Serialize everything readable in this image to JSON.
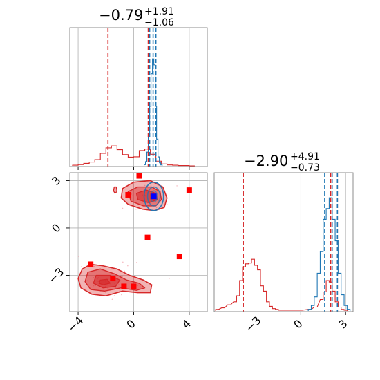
{
  "chart_data": {
    "type": "corner",
    "parameters": [
      {
        "title_median": "−0.79",
        "title_upper": "+1.91",
        "title_lower": "−1.06",
        "xlim": [
          -4.6,
          5.3
        ],
        "ticks": [
          {
            "value": -4,
            "label": "−4"
          },
          {
            "value": 0,
            "label": "0"
          },
          {
            "value": 4,
            "label": "4"
          }
        ],
        "quantiles": {
          "red": [
            -1.85,
            1.05,
            1.12
          ],
          "blue": [
            1.15,
            1.4,
            1.6
          ]
        }
      },
      {
        "title_median": "−2.90",
        "title_upper": "+4.91",
        "title_lower": "−0.73",
        "xlim": [
          -5.8,
          3.5
        ],
        "ticks": [
          {
            "value": -3,
            "label": "−3"
          },
          {
            "value": 0,
            "label": "0"
          },
          {
            "value": 3,
            "label": "3"
          }
        ],
        "quantiles": {
          "red": [
            -3.85,
            2.0,
            2.45
          ],
          "blue": [
            1.6,
            2.1,
            2.45
          ]
        }
      }
    ],
    "joint": {
      "xlim": [
        -4.6,
        5.3
      ],
      "ylim": [
        -5.3,
        3.5
      ],
      "xticks": [
        {
          "value": -4,
          "label": "−4"
        },
        {
          "value": 0,
          "label": "0"
        },
        {
          "value": 4,
          "label": "4"
        }
      ],
      "yticks": [
        {
          "value": 3,
          "label": "3"
        },
        {
          "value": 0,
          "label": "0"
        },
        {
          "value": -3,
          "label": "−3"
        }
      ],
      "red_squares": [
        [
          0.4,
          3.3
        ],
        [
          -0.4,
          2.1
        ],
        [
          4.0,
          2.4
        ],
        [
          1.0,
          -0.6
        ],
        [
          3.3,
          -1.8
        ],
        [
          -3.1,
          -2.3
        ],
        [
          -1.5,
          -3.2
        ],
        [
          -0.7,
          -3.7
        ],
        [
          0.0,
          -3.7
        ],
        [
          1.4,
          2.0
        ]
      ],
      "blue_square": [
        1.45,
        2.0
      ]
    },
    "hist1_red": {
      "x": [
        -4.2,
        -3.8,
        -3.4,
        -3.0,
        -2.6,
        -2.2,
        -1.8,
        -1.4,
        -1.0,
        -0.6,
        -0.2,
        0.2,
        0.6,
        1.0,
        1.4,
        1.8,
        2.2,
        2.6,
        3.0,
        3.4,
        3.8,
        4.2
      ],
      "counts": [
        0.2,
        0.4,
        0.8,
        1.2,
        2.0,
        4.0,
        5.8,
        6.4,
        5.2,
        3.6,
        2.8,
        2.9,
        4.9,
        5.4,
        3.7,
        1.5,
        0.6,
        0.3,
        0.2,
        0.1,
        0.1,
        0
      ]
    },
    "hist1_blue": {
      "x": [
        0.8,
        0.9,
        1.0,
        1.1,
        1.2,
        1.3,
        1.4,
        1.5,
        1.6,
        1.7,
        1.8,
        1.9,
        2.0
      ],
      "counts": [
        0.4,
        1.4,
        4.6,
        11.0,
        20.0,
        31.0,
        36.0,
        34.0,
        20.0,
        9.0,
        3.0,
        1.0,
        0.3
      ]
    },
    "hist2_red": {
      "x": [
        -5.6,
        -5.2,
        -4.8,
        -4.4,
        -4.2,
        -4.0,
        -3.8,
        -3.6,
        -3.4,
        -3.2,
        -3.0,
        -2.8,
        -2.6,
        -2.4,
        -2.2,
        -2.0,
        -1.8,
        -1.6,
        -1.4,
        0.0,
        0.6,
        1.0,
        1.4,
        1.6,
        1.8,
        2.0,
        2.2,
        2.4,
        2.6,
        2.8,
        3.0
      ],
      "counts": [
        0.2,
        0.4,
        0.8,
        1.2,
        2.0,
        4.0,
        5.8,
        6.2,
        6.3,
        6.8,
        6.0,
        5.4,
        3.3,
        2.6,
        1.2,
        0.6,
        0.3,
        0.2,
        0.1,
        0.1,
        0.2,
        0.5,
        1.5,
        2.5,
        4.0,
        3.8,
        2.6,
        1.2,
        0.5,
        0.2,
        0.1
      ]
    },
    "hist2_blue": {
      "x": [
        0.6,
        0.8,
        1.0,
        1.2,
        1.4,
        1.6,
        1.8,
        2.0,
        2.2,
        2.4,
        2.6,
        2.8,
        3.0,
        3.2
      ],
      "counts": [
        0.3,
        1.0,
        2.6,
        7.0,
        11.0,
        17.0,
        19.0,
        21.0,
        17.0,
        13.0,
        7.0,
        3.0,
        1.0,
        0.3
      ]
    }
  }
}
